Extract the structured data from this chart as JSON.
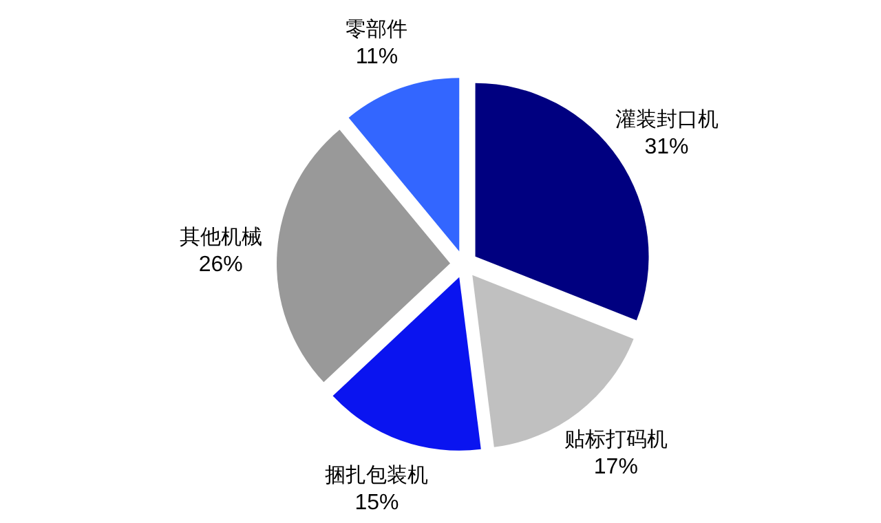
{
  "chart_data": {
    "type": "pie",
    "categories": [
      "灌装封口机",
      "贴标打码机",
      "捆扎包装机",
      "其他机械",
      "零部件"
    ],
    "values": [
      31,
      17,
      15,
      26,
      11
    ],
    "value_labels": [
      "31%",
      "17%",
      "15%",
      "26%",
      "11%"
    ],
    "colors": [
      "#000080",
      "#c0c0c0",
      "#0a14f0",
      "#999999",
      "#3366ff"
    ]
  }
}
